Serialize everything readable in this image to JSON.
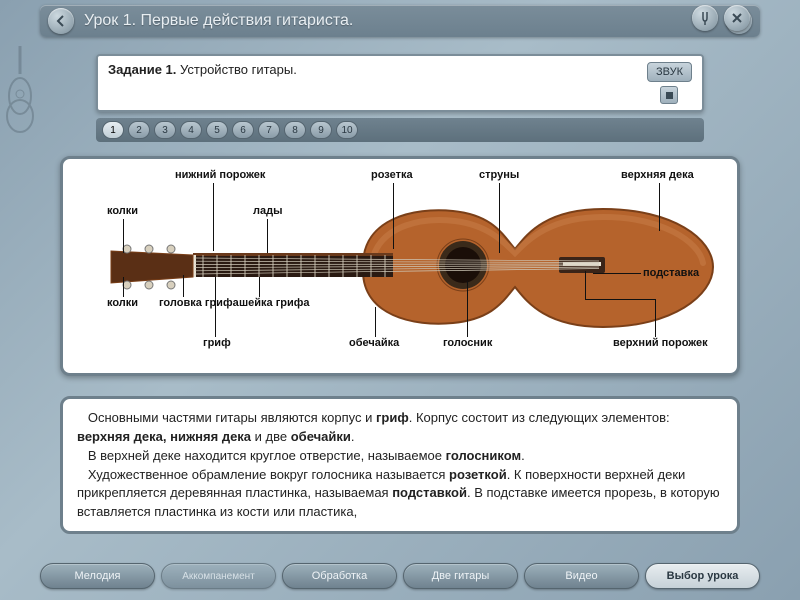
{
  "header": {
    "title": "Урок 1. Первые действия гитариста."
  },
  "task": {
    "label_bold": "Задание 1.",
    "label_rest": " Устройство гитары.",
    "sound_button": "ЗВУК"
  },
  "pager": {
    "items": [
      "1",
      "2",
      "3",
      "4",
      "5",
      "6",
      "7",
      "8",
      "9",
      "10"
    ],
    "active_index": 0
  },
  "diagram": {
    "guitar": {
      "body_color": "#b5632c",
      "body_highlight": "#c9804a",
      "body_shadow": "#7a3f18",
      "pickguard_color": "#2b1a12",
      "rosette_color": "#3a2a1a",
      "soundhole_color": "#1a0e08",
      "bridge_color": "#3a2418",
      "saddle_color": "#e8e2d4",
      "neck_color": "#6a3a1c",
      "fretboard_color": "#2a1a12",
      "fret_color": "#c0b8a8",
      "headstock_color": "#5a2f15",
      "tuner_color": "#d8d0be",
      "string_color": "#cfc8b8"
    },
    "labels": {
      "nizhniy_porozhek": "нижний порожек",
      "kolki": "колки",
      "kolki2": "колки",
      "lady": "лады",
      "golovka_grifa": "головка грифа",
      "sheyka_grifa": "шейка грифа",
      "grif": "гриф",
      "rozetka": "розетка",
      "obechayka": "обечайка",
      "golosnik": "голосник",
      "struny": "струны",
      "verkhnyaya_deka": "верхняя дека",
      "podstavka": "подставка",
      "verkhniy_porozhek": "верхний порожек"
    }
  },
  "description": {
    "line1_a": "Основными частями гитары являются корпус и ",
    "line1_b": "гриф",
    "line1_c": ". Корпус состоит из следующих элементов: ",
    "line1_d": "верхняя дека, нижняя дека",
    "line1_e": " и две ",
    "line1_f": "обечайки",
    "line1_g": ".",
    "line2_a": "В верхней деке находится круглое отверстие, называемое ",
    "line2_b": "голосником",
    "line2_c": ".",
    "line3_a": "Художественное обрамление вокруг голосника называется ",
    "line3_b": "розеткой",
    "line3_c": ". К поверхности верхней деки прикрепляется деревянная пластинка, называемая ",
    "line3_d": "подставкой",
    "line3_e": ". В подставке имеется прорезь, в которую вставляется пластинка из кости или пластика,"
  },
  "bottom_nav": {
    "melody": "Мелодия",
    "accomp": "Аккомпанемент",
    "obrabotka": "Обработка",
    "two_guitars": "Две гитары",
    "video": "Видео",
    "choose_lesson": "Выбор урока"
  },
  "colors": {
    "panel_border": "#6e808c",
    "bg_top": "#8aa0b0"
  }
}
